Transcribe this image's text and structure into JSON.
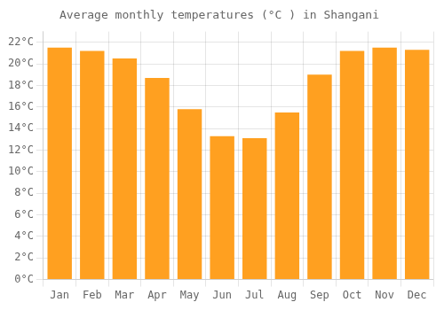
{
  "chart_data": {
    "type": "bar",
    "title": "Average monthly temperatures (°C ) in Shangani",
    "categories": [
      "Jan",
      "Feb",
      "Mar",
      "Apr",
      "May",
      "Jun",
      "Jul",
      "Aug",
      "Sep",
      "Oct",
      "Nov",
      "Dec"
    ],
    "values": [
      21.5,
      21.2,
      20.5,
      18.7,
      15.8,
      13.3,
      13.1,
      15.5,
      19.0,
      21.2,
      21.5,
      21.3
    ],
    "color": "#FFA020",
    "ylim": [
      0,
      23
    ],
    "yticks": [
      {
        "value": 0,
        "label": "0°C"
      },
      {
        "value": 2,
        "label": "2°C"
      },
      {
        "value": 4,
        "label": "4°C"
      },
      {
        "value": 6,
        "label": "6°C"
      },
      {
        "value": 8,
        "label": "8°C"
      },
      {
        "value": 10,
        "label": "10°C"
      },
      {
        "value": 12,
        "label": "12°C"
      },
      {
        "value": 14,
        "label": "14°C"
      },
      {
        "value": 16,
        "label": "16°C"
      },
      {
        "value": 18,
        "label": "18°C"
      },
      {
        "value": 20,
        "label": "20°C"
      },
      {
        "value": 22,
        "label": "22°C"
      }
    ],
    "grid": true
  }
}
